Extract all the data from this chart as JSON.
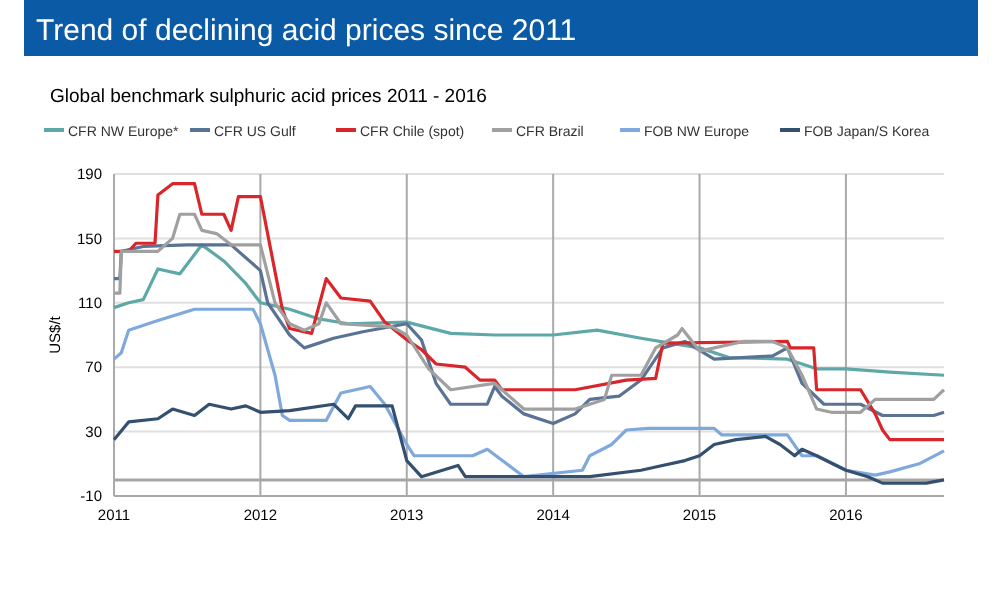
{
  "chart_data": {
    "type": "line",
    "title": "Trend of declining acid prices since 2011",
    "subtitle": "Global benchmark sulphuric acid prices 2011 - 2016",
    "ylabel": "US$/t",
    "xlim": [
      2011,
      2016.67
    ],
    "xticks": [
      2011,
      2012,
      2013,
      2014,
      2015,
      2016
    ],
    "ylim": [
      -10,
      190
    ],
    "yticks": [
      -10,
      30,
      70,
      110,
      150,
      190
    ],
    "grid": true,
    "legend": "top",
    "ref_lines": [
      {
        "axis": "y",
        "value": 0,
        "color": "#a6a6a6"
      }
    ],
    "series": [
      {
        "name": "CFR NW Europe*",
        "color": "#5fa8a8",
        "x": [
          2011,
          2011.1,
          2011.2,
          2011.3,
          2011.45,
          2011.6,
          2011.75,
          2011.9,
          2012,
          2012.2,
          2012.4,
          2012.6,
          2013,
          2013.3,
          2013.6,
          2014,
          2014.3,
          2014.6,
          2014.8,
          2015,
          2015.2,
          2015.6,
          2015.8,
          2016,
          2016.3,
          2016.67
        ],
        "values": [
          107,
          110,
          112,
          131,
          128,
          146,
          136,
          122,
          110,
          106,
          100,
          97,
          98,
          91,
          90,
          90,
          93,
          88,
          85,
          82,
          76,
          75,
          69,
          69,
          67,
          65
        ]
      },
      {
        "name": "CFR US Gulf",
        "color": "#5a7394",
        "x": [
          2011,
          2011.04,
          2011.05,
          2011.2,
          2011.5,
          2011.8,
          2012,
          2012.05,
          2012.2,
          2012.3,
          2012.5,
          2012.7,
          2013,
          2013.1,
          2013.2,
          2013.3,
          2013.55,
          2013.6,
          2013.65,
          2013.8,
          2014,
          2014.15,
          2014.25,
          2014.45,
          2014.6,
          2014.75,
          2014.9,
          2015.1,
          2015.5,
          2015.6,
          2015.7,
          2015.85,
          2016.1,
          2016.25,
          2016.6,
          2016.67
        ],
        "values": [
          125,
          125,
          142,
          145,
          146,
          146,
          130,
          110,
          90,
          82,
          88,
          92,
          97,
          87,
          60,
          47,
          47,
          58,
          52,
          41,
          35,
          41,
          50,
          52,
          62,
          82,
          86,
          75,
          77,
          82,
          60,
          47,
          47,
          40,
          40,
          42
        ]
      },
      {
        "name": "CFR Chile (spot)",
        "color": "#d9262b",
        "x": [
          2011,
          2011.1,
          2011.15,
          2011.28,
          2011.3,
          2011.4,
          2011.55,
          2011.6,
          2011.75,
          2011.8,
          2011.85,
          2012,
          2012.15,
          2012.2,
          2012.35,
          2012.45,
          2012.55,
          2012.75,
          2012.85,
          2013,
          2013.1,
          2013.2,
          2013.4,
          2013.5,
          2013.6,
          2013.65,
          2014.15,
          2014.5,
          2014.7,
          2014.75,
          2015.6,
          2015.62,
          2015.78,
          2015.8,
          2016.1,
          2016.2,
          2016.25,
          2016.3,
          2016.67
        ],
        "values": [
          142,
          142,
          147,
          147,
          177,
          184,
          184,
          165,
          165,
          155,
          176,
          176,
          106,
          94,
          91,
          125,
          113,
          111,
          98,
          87,
          81,
          72,
          70,
          62,
          62,
          56,
          56,
          62,
          63,
          85,
          86,
          82,
          82,
          56,
          56,
          41,
          31,
          25,
          25
        ]
      },
      {
        "name": "CFR Brazil",
        "color": "#a0a0a0",
        "x": [
          2011,
          2011.04,
          2011.05,
          2011.3,
          2011.4,
          2011.45,
          2011.55,
          2011.6,
          2011.7,
          2011.8,
          2012,
          2012.1,
          2012.2,
          2012.3,
          2012.4,
          2012.45,
          2012.55,
          2012.9,
          2013,
          2013.15,
          2013.3,
          2013.6,
          2013.8,
          2014.15,
          2014.35,
          2014.4,
          2014.6,
          2014.7,
          2014.85,
          2014.88,
          2015,
          2015.3,
          2015.5,
          2015.6,
          2015.7,
          2015.8,
          2015.9,
          2016.1,
          2016.2,
          2016.6,
          2016.67
        ],
        "values": [
          116,
          116,
          142,
          142,
          150,
          165,
          165,
          155,
          153,
          146,
          146,
          110,
          97,
          93,
          97,
          110,
          97,
          95,
          90,
          69,
          56,
          60,
          44,
          44,
          50,
          65,
          65,
          82,
          90,
          94,
          80,
          86,
          86,
          82,
          65,
          44,
          42,
          42,
          50,
          50,
          56
        ]
      },
      {
        "name": "FOB NW Europe",
        "color": "#7fa9dc",
        "x": [
          2011,
          2011.05,
          2011.1,
          2011.3,
          2011.55,
          2011.95,
          2012,
          2012.1,
          2012.15,
          2012.2,
          2012.45,
          2012.55,
          2012.75,
          2012.85,
          2013,
          2013.05,
          2013.45,
          2013.55,
          2013.8,
          2014.2,
          2014.25,
          2014.4,
          2014.5,
          2014.65,
          2015.1,
          2015.15,
          2015.6,
          2015.7,
          2015.8,
          2016,
          2016.2,
          2016.3,
          2016.5,
          2016.67
        ],
        "values": [
          75,
          79,
          93,
          99,
          106,
          106,
          97,
          65,
          40,
          37,
          37,
          54,
          58,
          47,
          22,
          15,
          15,
          19,
          2,
          6,
          15,
          22,
          31,
          32,
          32,
          28,
          28,
          15,
          15,
          6,
          3,
          5,
          10,
          18
        ]
      },
      {
        "name": "FOB Japan/S Korea",
        "color": "#34506f",
        "x": [
          2011,
          2011.1,
          2011.3,
          2011.4,
          2011.55,
          2011.65,
          2011.8,
          2011.9,
          2012,
          2012.2,
          2012.5,
          2012.6,
          2012.65,
          2012.9,
          2013,
          2013.1,
          2013.35,
          2013.4,
          2014.25,
          2014.6,
          2014.7,
          2014.9,
          2015,
          2015.1,
          2015.25,
          2015.45,
          2015.55,
          2015.65,
          2015.7,
          2015.8,
          2016,
          2016.15,
          2016.25,
          2016.55,
          2016.67
        ],
        "values": [
          25,
          36,
          38,
          44,
          40,
          47,
          44,
          46,
          42,
          43,
          47,
          38,
          46,
          46,
          12,
          2,
          9,
          2,
          2,
          6,
          8,
          12,
          15,
          22,
          25,
          27,
          22,
          15,
          19,
          15,
          6,
          2,
          -2,
          -2,
          0
        ]
      }
    ]
  }
}
